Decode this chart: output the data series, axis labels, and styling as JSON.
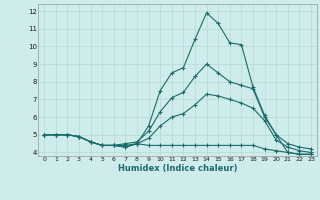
{
  "xlabel": "Humidex (Indice chaleur)",
  "xlim": [
    -0.5,
    23.5
  ],
  "ylim": [
    3.8,
    12.4
  ],
  "yticks": [
    4,
    5,
    6,
    7,
    8,
    9,
    10,
    11,
    12
  ],
  "xticks": [
    0,
    1,
    2,
    3,
    4,
    5,
    6,
    7,
    8,
    9,
    10,
    11,
    12,
    13,
    14,
    15,
    16,
    17,
    18,
    19,
    20,
    21,
    22,
    23
  ],
  "bg_color": "#ceecea",
  "grid_color": "#b8d8d6",
  "line_color": "#1a6b6b",
  "hours": [
    0,
    1,
    2,
    3,
    4,
    5,
    6,
    7,
    8,
    9,
    10,
    11,
    12,
    13,
    14,
    15,
    16,
    17,
    18,
    19,
    20,
    21,
    22,
    23
  ],
  "series": {
    "top": [
      5.0,
      5.0,
      5.0,
      4.9,
      4.6,
      4.4,
      4.4,
      4.3,
      4.5,
      5.5,
      7.5,
      8.5,
      8.8,
      10.4,
      11.9,
      11.3,
      10.2,
      10.1,
      7.7,
      6.1,
      5.0,
      4.0,
      3.9,
      3.9
    ],
    "upper": [
      5.0,
      5.0,
      5.0,
      4.9,
      4.6,
      4.4,
      4.4,
      4.5,
      4.6,
      5.2,
      6.3,
      7.1,
      7.4,
      8.3,
      9.0,
      8.5,
      8.0,
      7.8,
      7.6,
      6.0,
      5.0,
      4.5,
      4.3,
      4.2
    ],
    "lower": [
      5.0,
      5.0,
      5.0,
      4.9,
      4.6,
      4.4,
      4.4,
      4.4,
      4.5,
      4.8,
      5.5,
      6.0,
      6.2,
      6.7,
      7.3,
      7.2,
      7.0,
      6.8,
      6.5,
      5.8,
      4.7,
      4.3,
      4.1,
      4.0
    ],
    "bottom": [
      5.0,
      5.0,
      5.0,
      4.9,
      4.6,
      4.4,
      4.4,
      4.3,
      4.5,
      4.4,
      4.4,
      4.4,
      4.4,
      4.4,
      4.4,
      4.4,
      4.4,
      4.4,
      4.4,
      4.2,
      4.1,
      4.0,
      3.9,
      3.9
    ]
  }
}
